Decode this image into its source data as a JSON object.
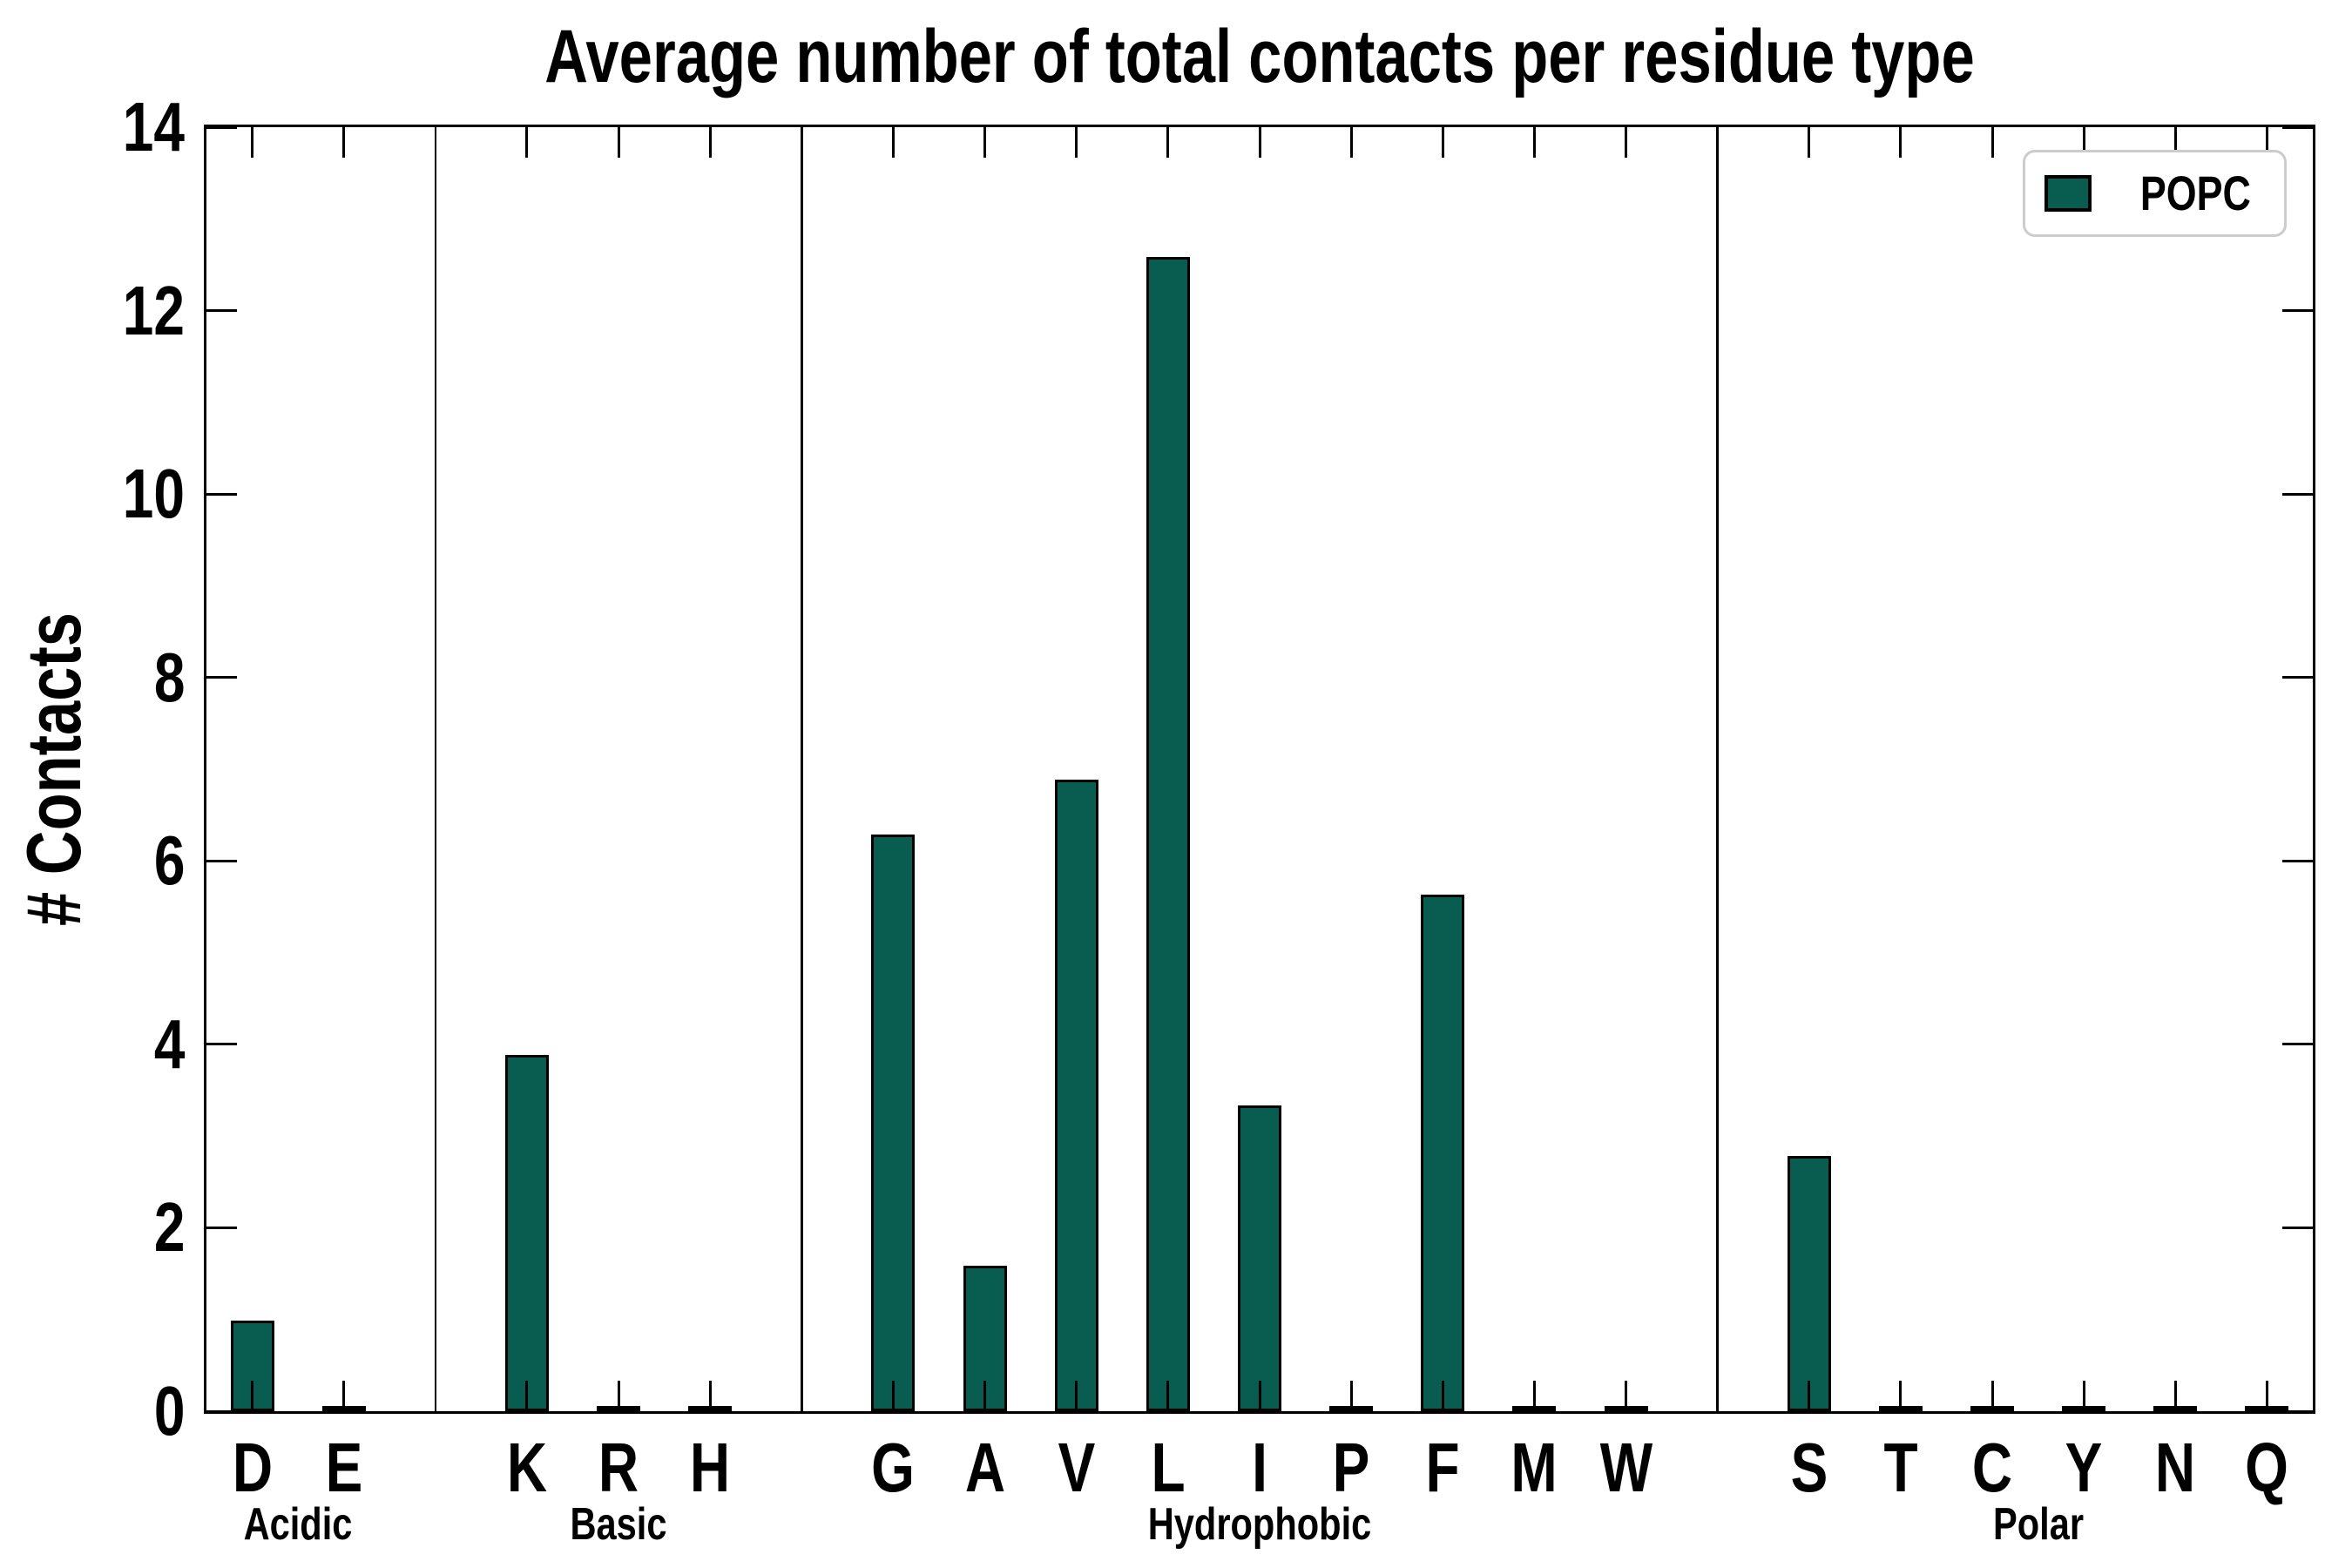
{
  "chart_data": {
    "type": "bar",
    "title": "Average number of total contacts per residue type",
    "ylabel": "# Contacts",
    "xlabel": "",
    "ylim": [
      0,
      14
    ],
    "yticks": [
      0,
      2,
      4,
      6,
      8,
      10,
      12,
      14
    ],
    "grid": false,
    "legend": {
      "label": "POPC",
      "position": "upper-right"
    },
    "colors": {
      "bar_fill": "#085c50",
      "bar_edge": "#000000",
      "axis": "#000000",
      "legend_border": "#cccccc"
    },
    "groups": [
      {
        "label": "Acidic",
        "categories": [
          "D",
          "E"
        ],
        "values": [
          0.95,
          0.02
        ]
      },
      {
        "label": "Basic",
        "categories": [
          "K",
          "R",
          "H"
        ],
        "values": [
          3.85,
          0.02,
          0.02
        ]
      },
      {
        "label": "Hydrophobic",
        "categories": [
          "G",
          "A",
          "V",
          "L",
          "I",
          "P",
          "F",
          "M",
          "W"
        ],
        "values": [
          6.25,
          1.55,
          6.85,
          12.55,
          3.3,
          0.02,
          5.6,
          0.02,
          0.02
        ]
      },
      {
        "label": "Polar",
        "categories": [
          "S",
          "T",
          "C",
          "Y",
          "N",
          "Q"
        ],
        "values": [
          2.75,
          0.02,
          0.02,
          0.02,
          0.02,
          0.02
        ]
      }
    ],
    "categories": [
      "D",
      "E",
      "K",
      "R",
      "H",
      "G",
      "A",
      "V",
      "L",
      "I",
      "P",
      "F",
      "M",
      "W",
      "S",
      "T",
      "C",
      "Y",
      "N",
      "Q"
    ],
    "values": [
      0.95,
      0.02,
      3.85,
      0.02,
      0.02,
      6.25,
      1.55,
      6.85,
      12.55,
      3.3,
      0.02,
      5.6,
      0.02,
      0.02,
      2.75,
      0.02,
      0.02,
      0.02,
      0.02,
      0.02
    ]
  }
}
